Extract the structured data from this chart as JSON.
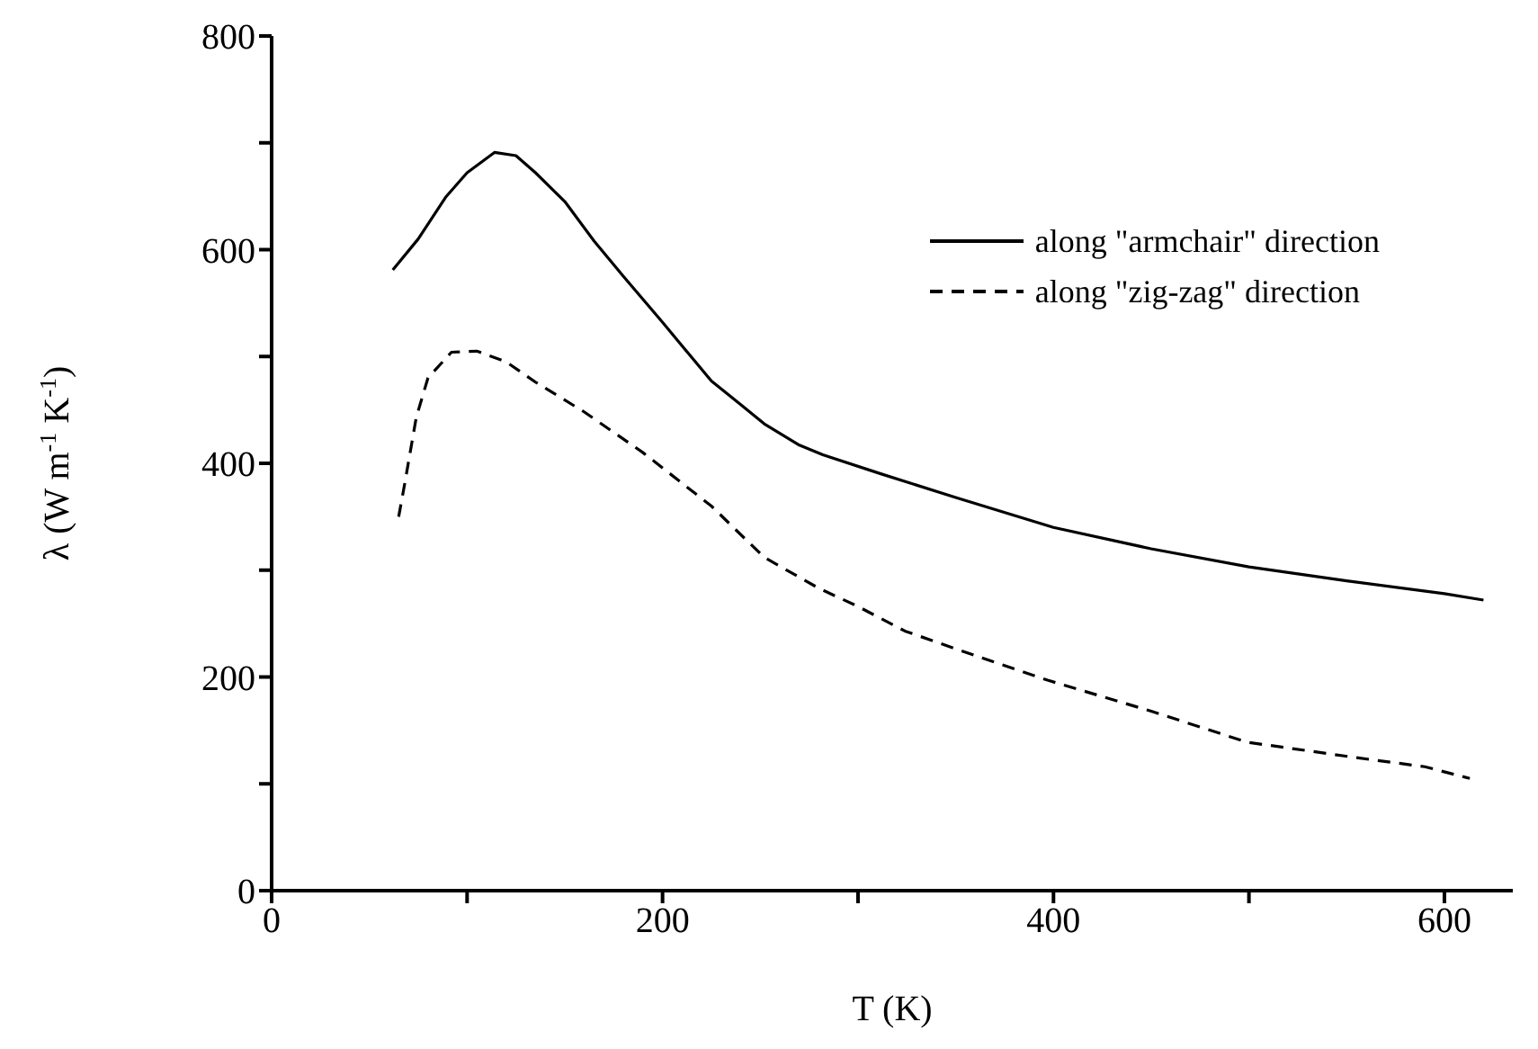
{
  "chart_data": {
    "type": "line",
    "xlabel": "T (K)",
    "ylabel": "λ (W m$^{-1}$ K$^{-1}$)",
    "xlim": [
      0,
      635
    ],
    "xticks": [
      0,
      {
        "value": 100,
        "label": null
      },
      200,
      {
        "value": 300,
        "label": null
      },
      400,
      {
        "value": 500,
        "label": null
      },
      600
    ],
    "ylim": [
      0,
      800
    ],
    "yticks": [
      0,
      {
        "value": 100,
        "label": null
      },
      200,
      {
        "value": 300,
        "label": null
      },
      400,
      {
        "value": 500,
        "label": null
      },
      600,
      {
        "value": 700,
        "label": null
      },
      800
    ],
    "legend": "top right",
    "marker": "none",
    "series": [
      {
        "name": "along \"armchair\" direction",
        "color": "#000000",
        "line_style": "solid",
        "x": [
          62,
          75,
          89,
          100,
          114,
          125,
          135,
          150,
          165,
          180,
          200,
          225,
          240,
          252,
          270,
          282,
          312,
          350,
          400,
          450,
          500,
          550,
          600,
          620
        ],
        "values": [
          581,
          610,
          649,
          672,
          691,
          688,
          672,
          645,
          608,
          575,
          532,
          477,
          455,
          437,
          417,
          408,
          390,
          368,
          340,
          320,
          303,
          290,
          278,
          272
        ]
      },
      {
        "name": "along \"zig-zag\" direction",
        "color": "#000000",
        "line_style": "dashed",
        "x": [
          65,
          68,
          74,
          80,
          92,
          105,
          120,
          135,
          160,
          190,
          225,
          252,
          280,
          300,
          324,
          360,
          397,
          450,
          499,
          553,
          590,
          613
        ],
        "values": [
          350,
          380,
          443,
          480,
          504,
          505,
          495,
          476,
          448,
          410,
          360,
          312,
          283,
          266,
          243,
          220,
          197,
          168,
          139,
          125,
          116,
          105
        ]
      }
    ]
  }
}
